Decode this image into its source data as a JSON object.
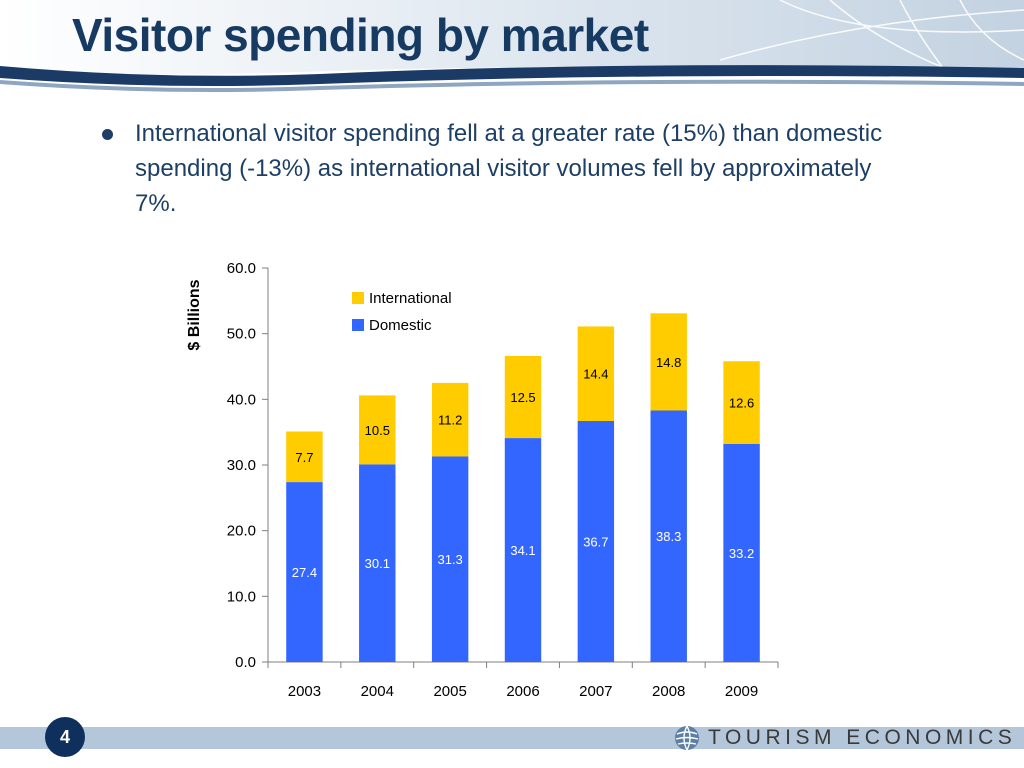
{
  "slide": {
    "title": "Visitor spending by market",
    "bullet": "International visitor spending fell at a greater rate (15%) than domestic spending (-13%) as international visitor volumes fell by approximately 7%.",
    "page_number": "4",
    "brand": "TOURISM ECONOMICS",
    "brand_icon": "globe-icon"
  },
  "chart_data": {
    "type": "bar",
    "stacked": true,
    "categories": [
      "2003",
      "2004",
      "2005",
      "2006",
      "2007",
      "2008",
      "2009"
    ],
    "series": [
      {
        "name": "Domestic",
        "color": "#3366ff",
        "values": [
          27.4,
          30.1,
          31.3,
          34.1,
          36.7,
          38.3,
          33.2
        ]
      },
      {
        "name": "International",
        "color": "#ffcc00",
        "values": [
          7.7,
          10.5,
          11.2,
          12.5,
          14.4,
          14.8,
          12.6
        ]
      }
    ],
    "data_labels": {
      "Domestic": [
        "27.4",
        "30.1",
        "31.3",
        "34.1",
        "36.7",
        "38.3",
        "33.2"
      ],
      "International": [
        "7.7",
        "10.5",
        "11.2",
        "12.5",
        "14.4",
        "14.8",
        "12.6"
      ]
    },
    "ylabel": "$ Billions",
    "ylim": [
      0,
      60
    ],
    "yticks": [
      "0.0",
      "10.0",
      "20.0",
      "30.0",
      "40.0",
      "50.0",
      "60.0"
    ],
    "grid": false,
    "legend": [
      "International",
      "Domestic"
    ],
    "legend_placement": "top-center"
  },
  "colors": {
    "title": "#173a63",
    "domestic_label": "#ffffff",
    "international_label": "#000000",
    "footer_band": "#b4c6d9",
    "badge": "#0f2f5c"
  }
}
